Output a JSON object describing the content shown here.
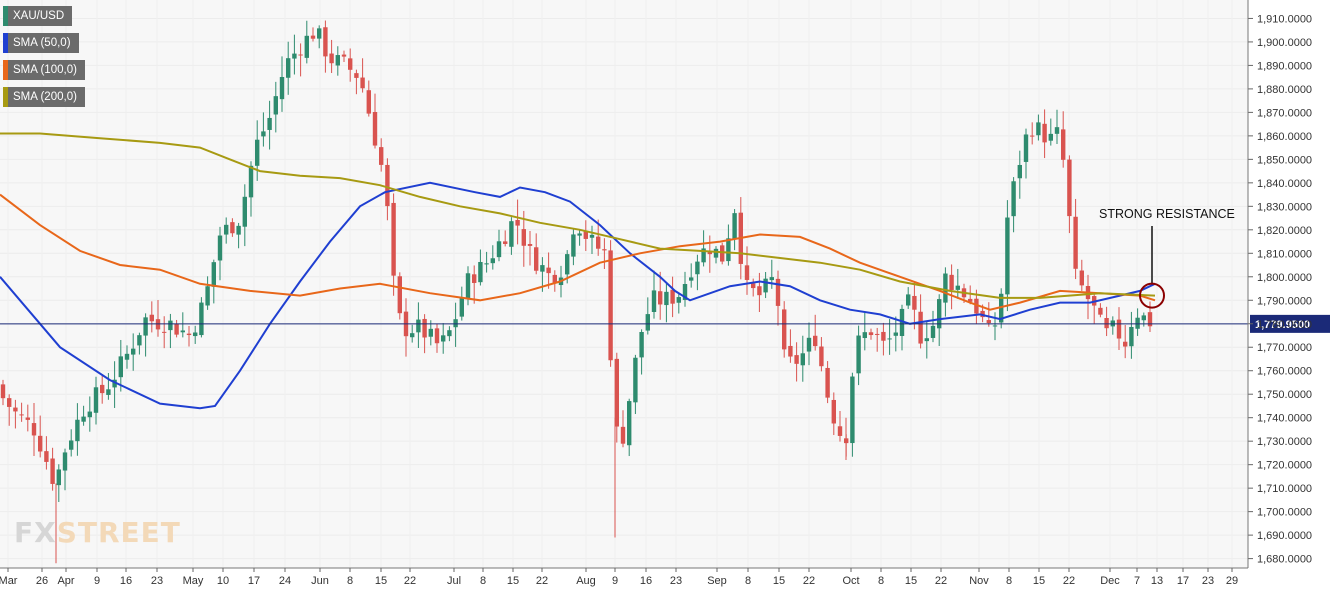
{
  "legend": [
    {
      "label": "XAU/USD",
      "color": "#2e8b6e"
    },
    {
      "label": "SMA (50,0)",
      "color": "#1f3fd1"
    },
    {
      "label": "SMA (100,0)",
      "color": "#e8671a"
    },
    {
      "label": "SMA (200,0)",
      "color": "#a79a12"
    }
  ],
  "logo": {
    "part1": "FX",
    "part2": "STREET"
  },
  "chart_data": {
    "type": "candlestick",
    "symbol": "XAU/USD",
    "ylim": [
      1676,
      1917
    ],
    "y_ticks": [
      "1,680.0000",
      "1,690.0000",
      "1,700.0000",
      "1,710.0000",
      "1,720.0000",
      "1,730.0000",
      "1,740.0000",
      "1,750.0000",
      "1,760.0000",
      "1,770.0000",
      "1,780.0000",
      "1,790.0000",
      "1,800.0000",
      "1,810.0000",
      "1,820.0000",
      "1,830.0000",
      "1,840.0000",
      "1,850.0000",
      "1,860.0000",
      "1,870.0000",
      "1,880.0000",
      "1,890.0000",
      "1,900.0000",
      "1,910.0000"
    ],
    "x_ticks": [
      "Mar",
      "26",
      "Apr",
      "9",
      "16",
      "23",
      "May",
      "10",
      "17",
      "24",
      "Jun",
      "8",
      "15",
      "22",
      "Jul",
      "8",
      "15",
      "22",
      "Aug",
      "9",
      "16",
      "23",
      "Sep",
      "8",
      "15",
      "22",
      "Oct",
      "8",
      "15",
      "22",
      "Nov",
      "8",
      "15",
      "22",
      "Dec",
      "7",
      "13",
      "17",
      "23",
      "29"
    ],
    "current_price": {
      "value": 1779.95,
      "label": "1,779.9500"
    },
    "annotation": {
      "text": "STRONG RESISTANCE",
      "price": 1792
    },
    "series": [
      {
        "name": "SMA (50,0)",
        "color": "#1f3fd1",
        "points": [
          [
            0,
            1800
          ],
          [
            20,
            1790
          ],
          [
            60,
            1770
          ],
          [
            110,
            1756
          ],
          [
            160,
            1746
          ],
          [
            200,
            1744
          ],
          [
            215,
            1745
          ],
          [
            240,
            1760
          ],
          [
            270,
            1780
          ],
          [
            300,
            1798
          ],
          [
            330,
            1815
          ],
          [
            360,
            1830
          ],
          [
            385,
            1836
          ],
          [
            430,
            1840
          ],
          [
            475,
            1836
          ],
          [
            500,
            1834
          ],
          [
            520,
            1838
          ],
          [
            545,
            1836
          ],
          [
            570,
            1832
          ],
          [
            600,
            1822
          ],
          [
            630,
            1810
          ],
          [
            660,
            1800
          ],
          [
            675,
            1794
          ],
          [
            690,
            1790
          ],
          [
            730,
            1796
          ],
          [
            760,
            1798
          ],
          [
            790,
            1796
          ],
          [
            820,
            1790
          ],
          [
            850,
            1786
          ],
          [
            880,
            1784
          ],
          [
            910,
            1780
          ],
          [
            940,
            1782
          ],
          [
            980,
            1784
          ],
          [
            1000,
            1782
          ],
          [
            1030,
            1786
          ],
          [
            1060,
            1789
          ],
          [
            1090,
            1789
          ],
          [
            1120,
            1792
          ],
          [
            1140,
            1794
          ],
          [
            1155,
            1797
          ]
        ]
      },
      {
        "name": "SMA (100,0)",
        "color": "#e8671a",
        "points": [
          [
            0,
            1835
          ],
          [
            40,
            1822
          ],
          [
            80,
            1811
          ],
          [
            120,
            1805
          ],
          [
            160,
            1803
          ],
          [
            200,
            1797
          ],
          [
            250,
            1794
          ],
          [
            300,
            1792
          ],
          [
            340,
            1795
          ],
          [
            380,
            1797
          ],
          [
            430,
            1793
          ],
          [
            480,
            1790
          ],
          [
            520,
            1793
          ],
          [
            560,
            1798
          ],
          [
            600,
            1806
          ],
          [
            640,
            1810
          ],
          [
            680,
            1813
          ],
          [
            720,
            1815
          ],
          [
            760,
            1818
          ],
          [
            800,
            1817
          ],
          [
            830,
            1812
          ],
          [
            860,
            1806
          ],
          [
            900,
            1800
          ],
          [
            940,
            1794
          ],
          [
            970,
            1789
          ],
          [
            990,
            1786
          ],
          [
            1020,
            1789
          ],
          [
            1060,
            1794
          ],
          [
            1100,
            1793
          ],
          [
            1140,
            1792
          ],
          [
            1155,
            1790
          ]
        ]
      },
      {
        "name": "SMA (200,0)",
        "color": "#a79a12",
        "points": [
          [
            0,
            1861
          ],
          [
            40,
            1861
          ],
          [
            100,
            1859
          ],
          [
            160,
            1857
          ],
          [
            200,
            1855
          ],
          [
            230,
            1850
          ],
          [
            260,
            1845
          ],
          [
            300,
            1843
          ],
          [
            340,
            1842
          ],
          [
            380,
            1839
          ],
          [
            420,
            1834
          ],
          [
            460,
            1830
          ],
          [
            500,
            1827
          ],
          [
            540,
            1823
          ],
          [
            580,
            1820
          ],
          [
            620,
            1816
          ],
          [
            660,
            1812
          ],
          [
            700,
            1811
          ],
          [
            740,
            1810
          ],
          [
            780,
            1808
          ],
          [
            820,
            1806
          ],
          [
            860,
            1803
          ],
          [
            900,
            1798
          ],
          [
            950,
            1794
          ],
          [
            1000,
            1791
          ],
          [
            1040,
            1791
          ],
          [
            1100,
            1793
          ],
          [
            1155,
            1792
          ]
        ]
      }
    ]
  }
}
